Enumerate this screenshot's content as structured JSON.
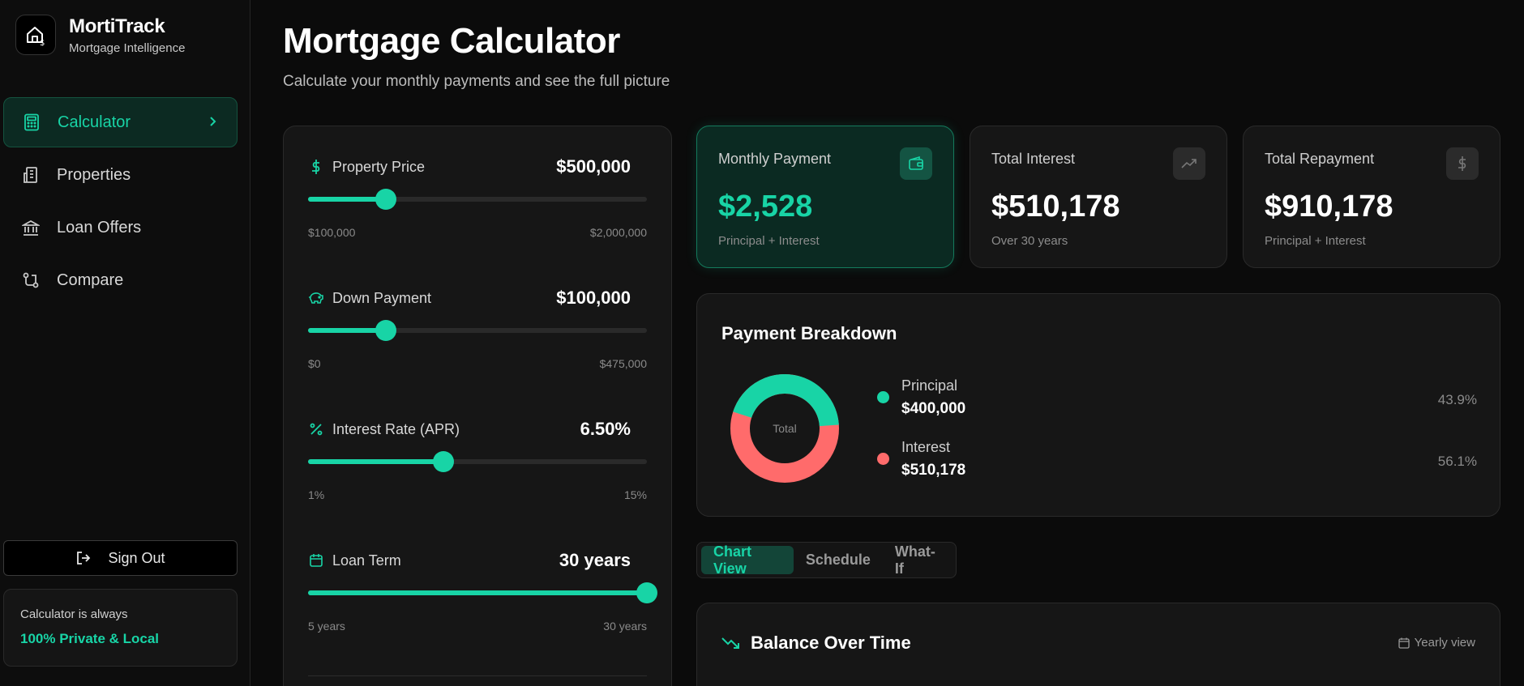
{
  "brand": {
    "name": "MortiTrack",
    "subtitle": "Mortgage Intelligence"
  },
  "nav": {
    "items": [
      {
        "label": "Calculator",
        "icon": "calculator-icon",
        "active": true
      },
      {
        "label": "Properties",
        "icon": "building-icon"
      },
      {
        "label": "Loan Offers",
        "icon": "bank-icon"
      },
      {
        "label": "Compare",
        "icon": "compare-icon"
      }
    ]
  },
  "sidebar_footer": {
    "signout_label": "Sign Out",
    "privacy_line1": "Calculator is always",
    "privacy_line2": "100% Private & Local"
  },
  "header": {
    "title": "Mortgage Calculator",
    "subtitle": "Calculate your monthly payments and see the full picture"
  },
  "inputs": {
    "property_price": {
      "label": "Property Price",
      "value": "$500,000",
      "min": "$100,000",
      "max": "$2,000,000",
      "fraction": 0.229,
      "icon": "dollar-icon"
    },
    "down_payment": {
      "label": "Down Payment",
      "value": "$100,000",
      "min": "$0",
      "max": "$475,000",
      "fraction": 0.229,
      "icon": "piggy-bank-icon"
    },
    "interest_rate": {
      "label": "Interest Rate (APR)",
      "value": "6.50%",
      "min": "1%",
      "max": "15%",
      "fraction": 0.4,
      "icon": "percent-icon"
    },
    "loan_term": {
      "label": "Loan Term",
      "value": "30 years",
      "min": "5 years",
      "max": "30 years",
      "fraction": 1.0,
      "icon": "calendar-icon"
    }
  },
  "stats": {
    "monthly": {
      "label": "Monthly Payment",
      "value": "$2,528",
      "note": "Principal + Interest",
      "icon": "wallet-icon"
    },
    "interest": {
      "label": "Total Interest",
      "value": "$510,178",
      "note": "Over 30 years",
      "icon": "trend-up-icon"
    },
    "repayment": {
      "label": "Total Repayment",
      "value": "$910,178",
      "note": "Principal + Interest",
      "icon": "dollar-icon"
    }
  },
  "breakdown": {
    "title": "Payment Breakdown",
    "center_label": "Total",
    "colors": {
      "principal": "#18d4a6",
      "interest": "#ff6b6b"
    },
    "principal": {
      "name": "Principal",
      "amount": "$400,000",
      "pct": "43.9%",
      "fraction": 0.439
    },
    "interest": {
      "name": "Interest",
      "amount": "$510,178",
      "pct": "56.1%",
      "fraction": 0.561
    }
  },
  "tabs": [
    {
      "label": "Chart View",
      "active": true
    },
    {
      "label": "Schedule"
    },
    {
      "label": "What-If"
    }
  ],
  "balance": {
    "title": "Balance Over Time",
    "view_label": "Yearly view",
    "icon": "trend-down-icon"
  }
}
